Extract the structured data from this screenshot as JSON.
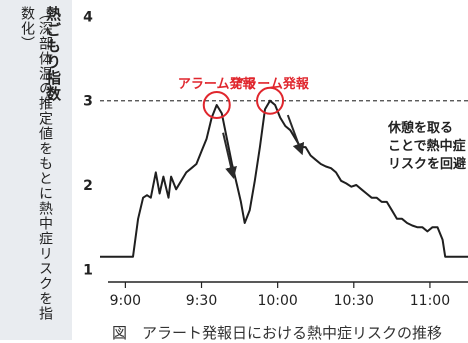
{
  "chart_data": {
    "type": "line",
    "ylabel_main": "熱ごもり指数",
    "ylabel_sub": "（深部体温の推定値をもとに熱中症リスクを指数化）",
    "caption": "図　アラート発報日における熱中症リスクの推移",
    "x_ticks": [
      "9:00",
      "9:30",
      "10:00",
      "10:30",
      "11:00"
    ],
    "y_ticks": [
      1,
      2,
      3,
      4
    ],
    "ylim": [
      0.85,
      4.1
    ],
    "threshold": 3,
    "x_unit_minutes": true,
    "x_range_minutes": [
      530,
      675
    ],
    "series": [
      {
        "x": [
          530,
          543,
          545,
          547,
          548.5,
          550,
          552,
          553.5,
          555,
          557,
          558,
          560,
          562,
          564,
          566,
          568,
          570,
          572,
          574,
          576,
          578,
          580,
          582,
          584,
          585.5,
          587,
          589,
          591,
          593,
          595,
          597,
          599,
          601,
          603,
          605,
          607,
          609,
          611,
          613,
          615,
          617,
          619,
          621,
          623,
          625,
          627,
          629,
          631,
          633,
          635,
          637,
          639,
          641,
          643,
          645,
          647,
          649,
          651,
          653,
          655,
          657,
          659,
          661,
          663,
          665,
          666,
          675
        ],
        "values": [
          1.15,
          1.15,
          1.6,
          1.85,
          1.88,
          1.85,
          2.15,
          1.9,
          2.1,
          1.85,
          2.1,
          1.95,
          2.05,
          2.15,
          2.2,
          2.25,
          2.4,
          2.55,
          2.8,
          2.95,
          2.85,
          2.55,
          2.25,
          2.0,
          1.8,
          1.55,
          1.7,
          2.05,
          2.45,
          2.9,
          3.0,
          2.95,
          2.8,
          2.7,
          2.65,
          2.55,
          2.45,
          2.45,
          2.35,
          2.3,
          2.25,
          2.22,
          2.2,
          2.15,
          2.05,
          2.02,
          1.98,
          2.0,
          1.95,
          1.9,
          1.85,
          1.85,
          1.8,
          1.8,
          1.7,
          1.6,
          1.6,
          1.55,
          1.52,
          1.5,
          1.5,
          1.45,
          1.5,
          1.5,
          1.35,
          1.15,
          1.15
        ]
      }
    ],
    "alerts": [
      {
        "label": "アラーム発報",
        "x": 576,
        "y": 2.95
      },
      {
        "label": "アラーム発報",
        "x": 597,
        "y": 3.0
      }
    ],
    "annotation_lines": [
      "休憩を取る",
      "ことで熱中症",
      "リスクを回避"
    ],
    "colors": {
      "line": "#1f1f1f",
      "alert": "#e0262d",
      "threshold": "#444444",
      "arrow": "#2a2a2a",
      "panel": "#e9ecf0"
    }
  }
}
